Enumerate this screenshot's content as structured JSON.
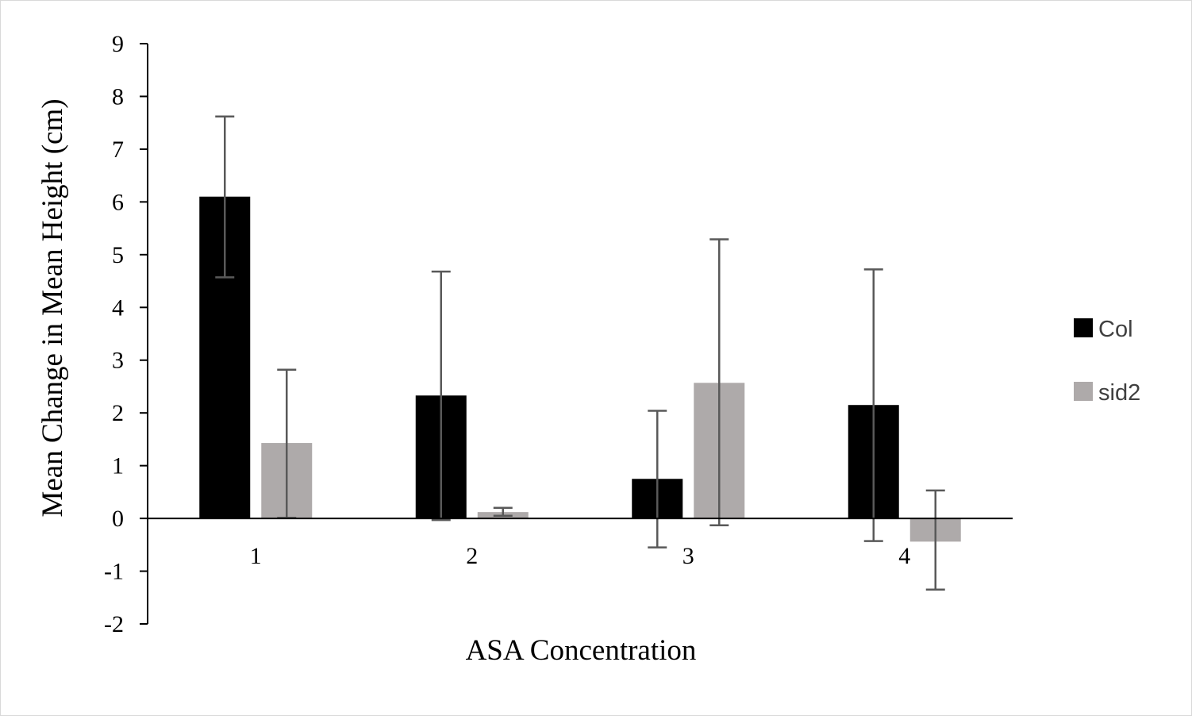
{
  "chart_data": {
    "type": "bar",
    "title": "",
    "xlabel": "ASA Concentration",
    "ylabel": "Mean Change in Mean Height (cm)",
    "categories": [
      "1",
      "2",
      "3",
      "4"
    ],
    "ylim": [
      -2,
      9
    ],
    "yticks": [
      "9",
      "8",
      "7",
      "6",
      "5",
      "4",
      "3",
      "2",
      "1",
      "0",
      "-1",
      "-2"
    ],
    "grid": false,
    "legend_position": "right",
    "series": [
      {
        "name": "Col",
        "color": "#000000",
        "values": [
          6.1,
          2.33,
          0.75,
          2.15
        ],
        "error_low": [
          4.57,
          -0.03,
          -0.55,
          -0.43
        ],
        "error_high": [
          7.62,
          4.68,
          2.04,
          4.72
        ]
      },
      {
        "name": "sid2",
        "color": "#aeaaaa",
        "values": [
          1.43,
          0.12,
          2.57,
          -0.44
        ],
        "error_low": [
          0.01,
          0.05,
          -0.13,
          -1.35
        ],
        "error_high": [
          2.82,
          0.2,
          5.29,
          0.53
        ]
      }
    ],
    "error_bar_color": "#595959"
  }
}
